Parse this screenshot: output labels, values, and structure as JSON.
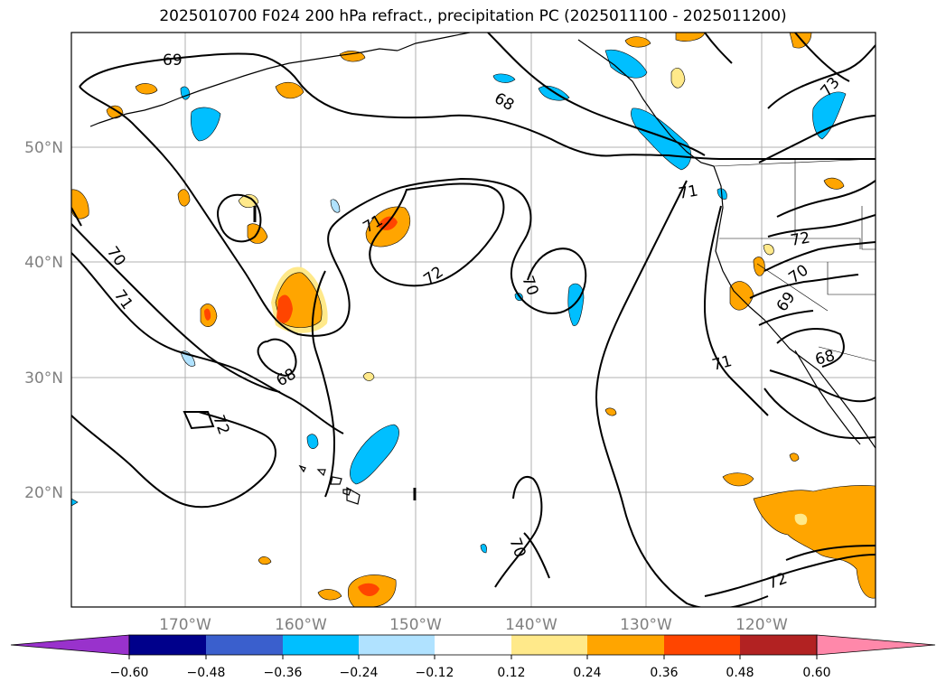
{
  "title": "2025010700 F024 200 hPa refract., precipitation PC (2025011100 - 2025011200)",
  "latitudes": [
    "50°N",
    "40°N",
    "30°N",
    "20°N"
  ],
  "longitudes": [
    "170°W",
    "160°W",
    "150°W",
    "140°W",
    "130°W",
    "120°W"
  ],
  "contour_labels": [
    "69",
    "68",
    "73",
    "71",
    "70",
    "71",
    "72",
    "70",
    "71",
    "68",
    "72",
    "70",
    "72",
    "69",
    "70",
    "71",
    "68",
    "72"
  ],
  "colorbar": {
    "ticks": [
      "−0.60",
      "−0.48",
      "−0.36",
      "−0.24",
      "−0.12",
      "0.12",
      "0.24",
      "0.36",
      "0.48",
      "0.60"
    ],
    "colors": [
      "#9932cc",
      "#00008b",
      "#3a5fcd",
      "#00bfff",
      "#b0e2ff",
      "#ffffff",
      "#ffe98a",
      "#ffa500",
      "#ff4500",
      "#b22222",
      "#ff88aa"
    ]
  }
}
